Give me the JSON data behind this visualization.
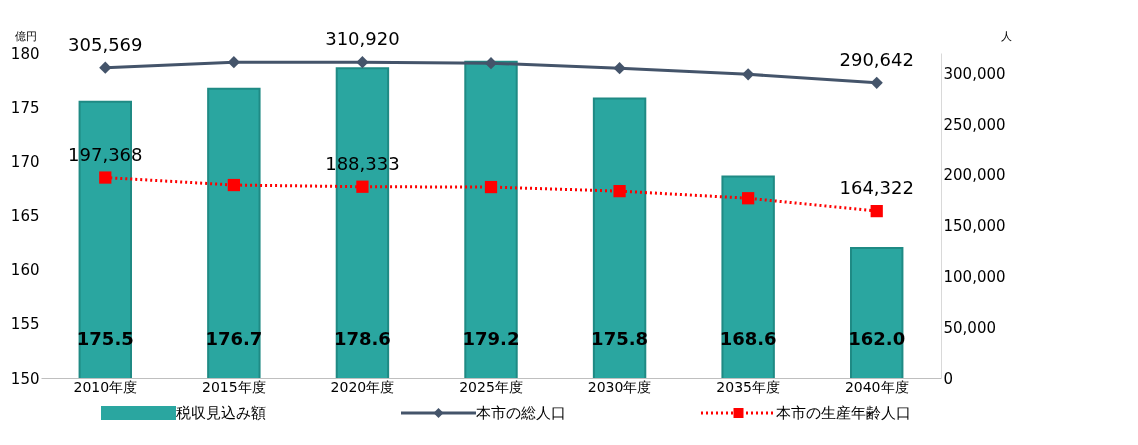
{
  "chart_data": {
    "type": "bar",
    "categories": [
      "2010年度",
      "2015年度",
      "2020年度",
      "2025年度",
      "2030年度",
      "2035年度",
      "2040年度"
    ],
    "ylabel": "億円",
    "y2label": "人",
    "ylim": [
      150,
      180
    ],
    "yticks": [
      150,
      155,
      160,
      165,
      170,
      175,
      180
    ],
    "y2lim": [
      0,
      320000
    ],
    "y2ticks": [
      0,
      {
        "value": 50000,
        "label": "50,000"
      },
      {
        "value": 100000,
        "label": "100,000"
      },
      {
        "value": 150000,
        "label": "150,000"
      },
      {
        "value": 200000,
        "label": "200,000"
      },
      {
        "value": 250000,
        "label": "250,000"
      },
      {
        "value": 300000,
        "label": "300,000"
      }
    ],
    "grid": false,
    "legend": "bottom",
    "series": [
      {
        "name": "税収見込み額",
        "color": "#2aa6a0",
        "values": [
          175.5,
          176.7,
          178.6,
          179.2,
          175.8,
          168.6,
          162.0
        ],
        "value_labels": [
          "175.5",
          "176.7",
          "178.6",
          "179.2",
          "175.8",
          "168.6",
          "162.0"
        ]
      },
      {
        "name": "本市の総人口",
        "type": "line",
        "axis": "y2",
        "color": "#44546a",
        "marker": "diamond",
        "line_style": "solid",
        "values": [
          305569,
          311000,
          310920,
          310000,
          305000,
          299000,
          290642
        ],
        "value_labels": [
          "305,569",
          null,
          "310,920",
          null,
          null,
          null,
          "290,642"
        ]
      },
      {
        "name": "本市の生産年齢人口",
        "type": "line",
        "axis": "y2",
        "color": "#ff0000",
        "marker": "square",
        "line_style": "dotted",
        "values": [
          197368,
          190000,
          188333,
          188000,
          184000,
          177000,
          164322
        ],
        "value_labels": [
          "197,368",
          null,
          "188,333",
          null,
          null,
          null,
          "164,322"
        ]
      }
    ]
  }
}
